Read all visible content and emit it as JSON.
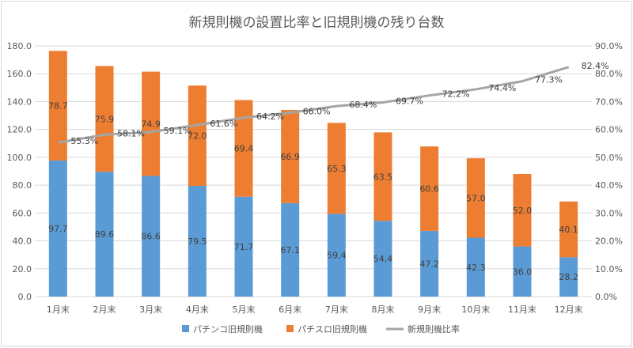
{
  "chart_data": {
    "type": "bar",
    "title": "新規則機の設置比率と旧規則機の残り台数",
    "categories": [
      "1月末",
      "2月末",
      "3月末",
      "4月末",
      "5月末",
      "6月末",
      "7月末",
      "8月末",
      "9月末",
      "10月末",
      "11月末",
      "12月末"
    ],
    "series": [
      {
        "name": "パチンコ旧規則機",
        "type": "bar",
        "stacked": true,
        "color": "#5b9bd5",
        "values": [
          97.7,
          89.6,
          86.6,
          79.5,
          71.7,
          67.1,
          59.4,
          54.4,
          47.2,
          42.3,
          36.0,
          28.2
        ],
        "labels": [
          "97.7",
          "89.6",
          "86.6",
          "79.5",
          "71.7",
          "67.1",
          "59.4",
          "54.4",
          "47.2",
          "42.3",
          "36.0",
          "28.2"
        ]
      },
      {
        "name": "パチスロ旧規則機",
        "type": "bar",
        "stacked": true,
        "color": "#ed7d31",
        "values": [
          78.7,
          75.9,
          74.9,
          72.0,
          69.4,
          66.9,
          65.3,
          63.5,
          60.6,
          57.0,
          52.0,
          40.1
        ],
        "labels": [
          "78.7",
          "75.9",
          "74.9",
          "72.0",
          "69.4",
          "66.9",
          "65.3",
          "63.5",
          "60.6",
          "57.0",
          "52.0",
          "40.1"
        ]
      },
      {
        "name": "新規則機比率",
        "type": "line",
        "axis": "right",
        "color": "#a5a5a5",
        "values": [
          55.3,
          58.1,
          59.1,
          61.6,
          64.2,
          66.0,
          68.4,
          69.7,
          72.2,
          74.4,
          77.3,
          82.4
        ],
        "labels": [
          "55.3%",
          "58.1%",
          "59.1%",
          "61.6%",
          "64.2%",
          "66.0%",
          "68.4%",
          "69.7%",
          "72.2%",
          "74.4%",
          "77.3%",
          "82.4%"
        ]
      }
    ],
    "y_left": {
      "range": [
        0,
        180
      ],
      "ticks": [
        0,
        20,
        40,
        60,
        80,
        100,
        120,
        140,
        160,
        180
      ],
      "tick_labels": [
        "0.0",
        "20.0",
        "40.0",
        "60.0",
        "80.0",
        "100.0",
        "120.0",
        "140.0",
        "160.0",
        "180.0"
      ]
    },
    "y_right": {
      "range": [
        0,
        90
      ],
      "ticks": [
        0,
        10,
        20,
        30,
        40,
        50,
        60,
        70,
        80,
        90
      ],
      "tick_labels": [
        "0.0%",
        "10.0%",
        "20.0%",
        "30.0%",
        "40.0%",
        "50.0%",
        "60.0%",
        "70.0%",
        "80.0%",
        "90.0%"
      ]
    },
    "grid": true,
    "legend_position": "bottom"
  }
}
